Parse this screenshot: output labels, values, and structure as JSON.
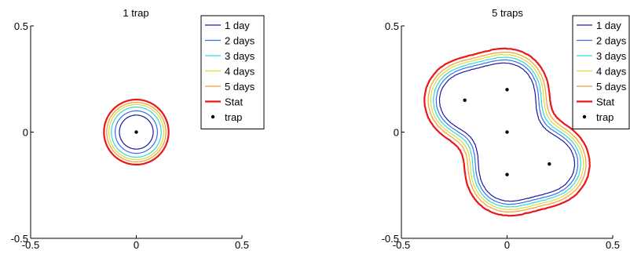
{
  "colors": {
    "day1": "#1a1aa0",
    "day2": "#3a6ee8",
    "day3": "#33d6e0",
    "day4": "#dede30",
    "day5": "#f59a3c",
    "stat": "#e81818",
    "trap": "#000000",
    "axis": "#000000"
  },
  "chart_data": [
    {
      "type": "line",
      "title": "1 trap",
      "xlim": [
        -0.5,
        0.5
      ],
      "ylim": [
        -0.5,
        0.5
      ],
      "xticks": [
        "-0.5",
        "0",
        "0.5"
      ],
      "yticks": [
        "0.5",
        "0",
        "-0.5"
      ],
      "grid": false,
      "legend_position": "top-right",
      "legend": [
        "1 day",
        "2 days",
        "3 days",
        "4 days",
        "5 days",
        "Stat",
        "trap"
      ],
      "traps": [
        [
          0,
          0
        ]
      ],
      "series": [
        {
          "name": "1 day",
          "radius": 0.08
        },
        {
          "name": "2 days",
          "radius": 0.1
        },
        {
          "name": "3 days",
          "radius": 0.118
        },
        {
          "name": "4 days",
          "radius": 0.13
        },
        {
          "name": "5 days",
          "radius": 0.14
        },
        {
          "name": "Stat",
          "radius": 0.153
        }
      ]
    },
    {
      "type": "line",
      "title": "5 traps",
      "xlim": [
        -0.5,
        0.5
      ],
      "ylim": [
        -0.5,
        0.5
      ],
      "xticks": [
        "-0.5",
        "0",
        "0.5"
      ],
      "yticks": [
        "0.5",
        "0",
        "-0.5"
      ],
      "grid": false,
      "legend_position": "top-right",
      "legend": [
        "1 day",
        "2 days",
        "3 days",
        "4 days",
        "5 days",
        "Stat",
        "trap"
      ],
      "traps": [
        [
          -0.2,
          0.15
        ],
        [
          0,
          0.2
        ],
        [
          0,
          0
        ],
        [
          0,
          -0.2
        ],
        [
          0.2,
          -0.15
        ]
      ],
      "series": [
        {
          "name": "1 day",
          "level": 0.49
        },
        {
          "name": "2 days",
          "level": 0.4
        },
        {
          "name": "3 days",
          "level": 0.33
        },
        {
          "name": "4 days",
          "level": 0.27
        },
        {
          "name": "5 days",
          "level": 0.22
        },
        {
          "name": "Stat",
          "level": 0.16
        }
      ]
    }
  ]
}
